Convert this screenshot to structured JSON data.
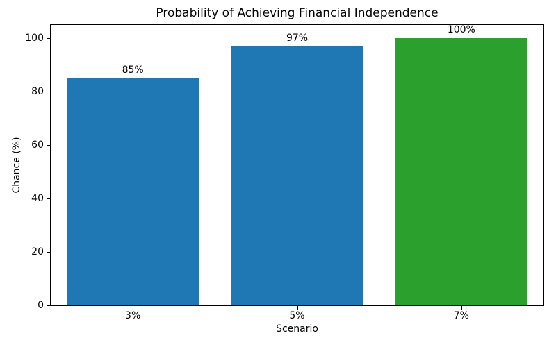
{
  "chart_data": {
    "type": "bar",
    "title": "Probability of Achieving Financial Independence",
    "xlabel": "Scenario",
    "ylabel": "Chance (%)",
    "categories": [
      "3%",
      "5%",
      "7%"
    ],
    "values": [
      85,
      97,
      100
    ],
    "bar_labels": [
      "85%",
      "97%",
      "100%"
    ],
    "bar_colors": [
      "#1f77b4",
      "#1f77b4",
      "#2ca02c"
    ],
    "yticks": [
      0,
      20,
      40,
      60,
      80,
      100
    ],
    "ylim": [
      0,
      105
    ],
    "bar_width_fraction": 0.8,
    "grid": false,
    "legend_position": "none",
    "background_color": "#ffffff",
    "spine_color": "#000000",
    "text_color": "#000000"
  }
}
